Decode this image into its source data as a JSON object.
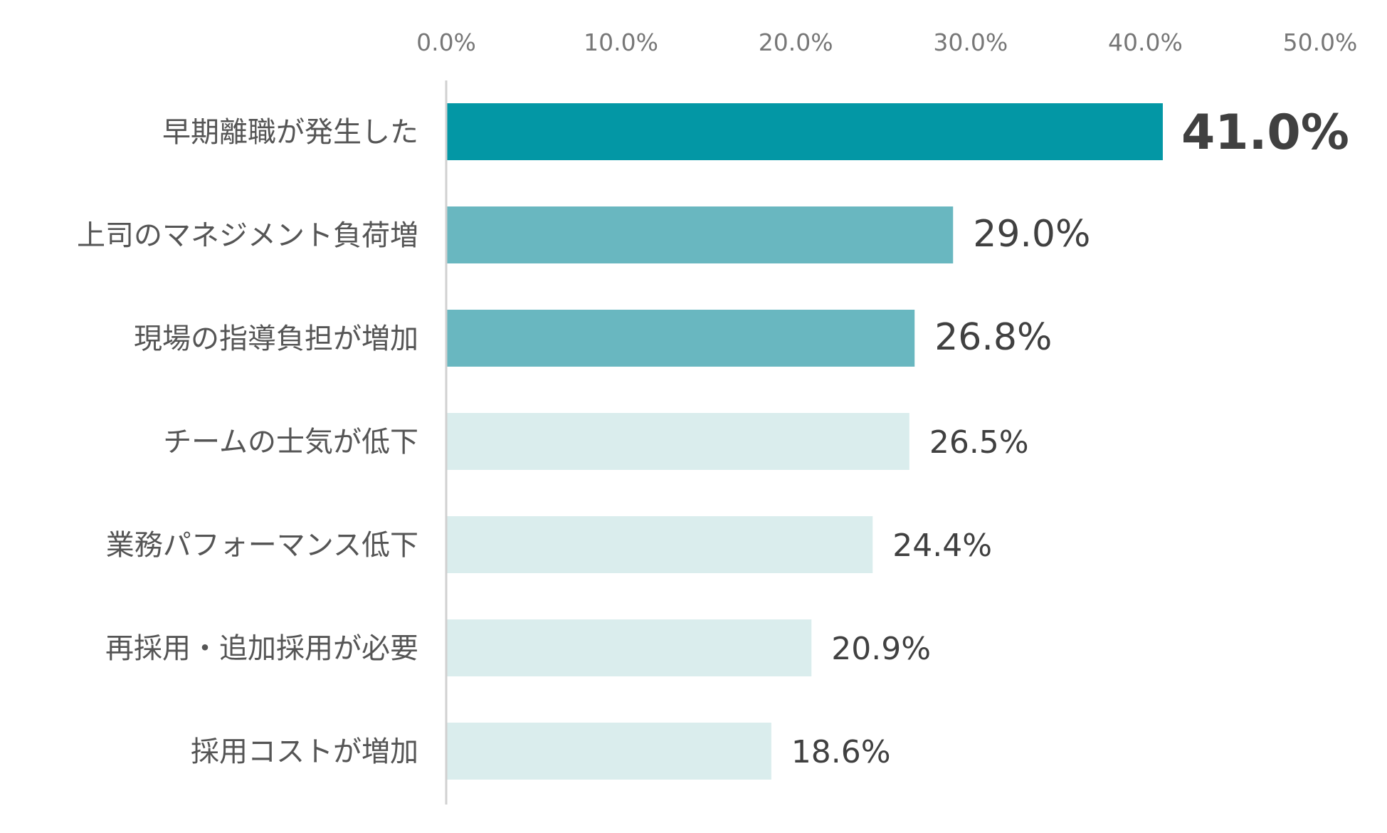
{
  "chart_data": {
    "type": "bar",
    "orientation": "horizontal",
    "title": "",
    "xlabel": "",
    "ylabel": "",
    "xlim": [
      0,
      50
    ],
    "x_ticks": [
      "0.0%",
      "10.0%",
      "20.0%",
      "30.0%",
      "40.0%",
      "50.0%"
    ],
    "x_tick_values": [
      0,
      10,
      20,
      30,
      40,
      50
    ],
    "x_axis_position": "top",
    "grid": false,
    "legend": "none",
    "categories": [
      "早期離職が発生した",
      "上司のマネジメント負荷増",
      "現場の指導負担が増加",
      "チームの士気が低下",
      "業務パフォーマンス低下",
      "再採用・追加採用が必要",
      "採用コストが増加"
    ],
    "values": [
      41.0,
      29.0,
      26.8,
      26.5,
      24.4,
      20.9,
      18.6
    ],
    "value_labels": [
      "41.0%",
      "29.0%",
      "26.8%",
      "26.5%",
      "24.4%",
      "20.9%",
      "18.6%"
    ],
    "bar_colors": [
      "#0397A5",
      "#69B7C0",
      "#69B7C0",
      "#DAEDED",
      "#DAEDED",
      "#DAEDED",
      "#DAEDED"
    ],
    "emphasis": [
      true,
      false,
      false,
      false,
      false,
      false,
      false
    ],
    "axis_color": "#D0D0D0"
  }
}
